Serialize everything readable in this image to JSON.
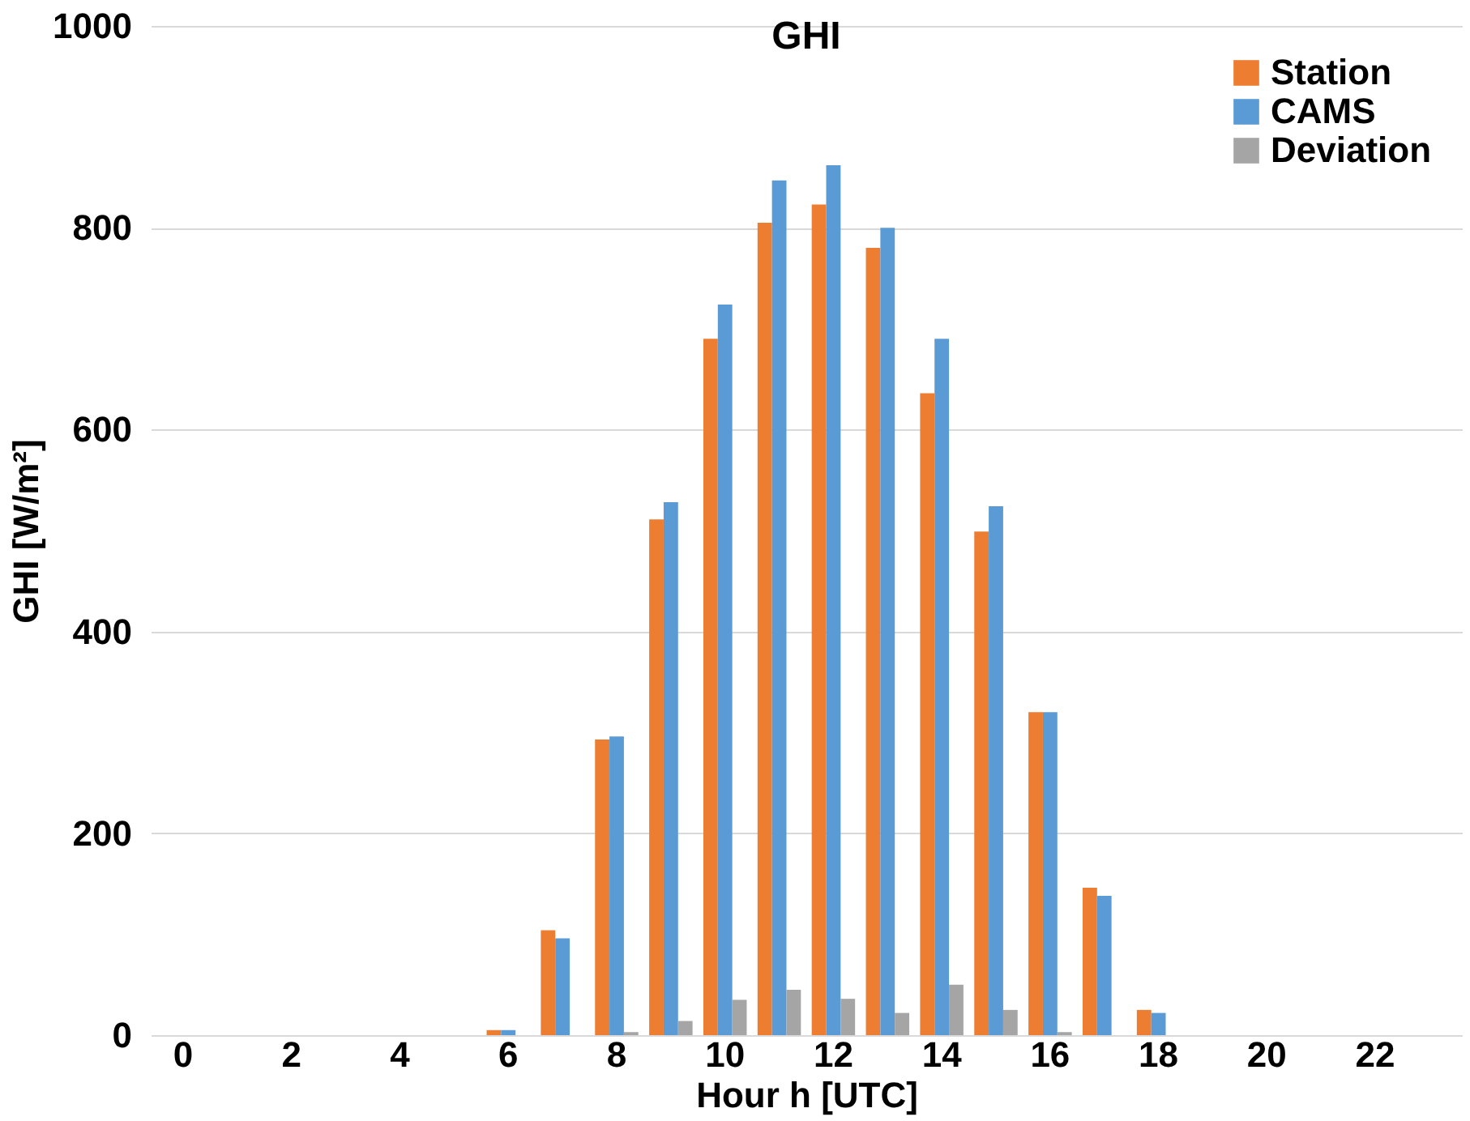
{
  "chart_data": {
    "type": "bar",
    "title": "GHI",
    "xlabel": "Hour h [UTC]",
    "ylabel": "GHI [W/m²]",
    "categories": [
      "0",
      null,
      "2",
      null,
      "4",
      null,
      "6",
      null,
      "8",
      null,
      "10",
      null,
      "12",
      null,
      "14",
      null,
      "16",
      null,
      "18",
      null,
      "20",
      null,
      "22",
      null
    ],
    "series": [
      {
        "name": "Station",
        "color": "#ed7d31",
        "values": [
          0,
          0,
          0,
          0,
          0,
          0,
          5,
          104,
          293,
          511,
          690,
          805,
          823,
          780,
          636,
          499,
          320,
          146,
          25,
          0,
          0,
          0,
          0,
          0
        ]
      },
      {
        "name": "CAMS",
        "color": "#5b9bd5",
        "values": [
          0,
          0,
          0,
          0,
          0,
          0,
          5,
          96,
          296,
          528,
          724,
          847,
          862,
          800,
          690,
          524,
          320,
          138,
          22,
          0,
          0,
          0,
          0,
          0
        ]
      },
      {
        "name": "Deviation",
        "color": "#a5a5a5",
        "values": [
          0,
          0,
          0,
          0,
          0,
          0,
          0,
          0,
          3,
          14,
          35,
          45,
          36,
          22,
          50,
          25,
          3,
          0,
          0,
          0,
          0,
          0,
          0,
          0
        ]
      }
    ],
    "ylim": [
      0,
      1000
    ],
    "yticks": [
      0,
      200,
      400,
      600,
      800,
      1000
    ],
    "grid": "y",
    "legend": "top right"
  }
}
